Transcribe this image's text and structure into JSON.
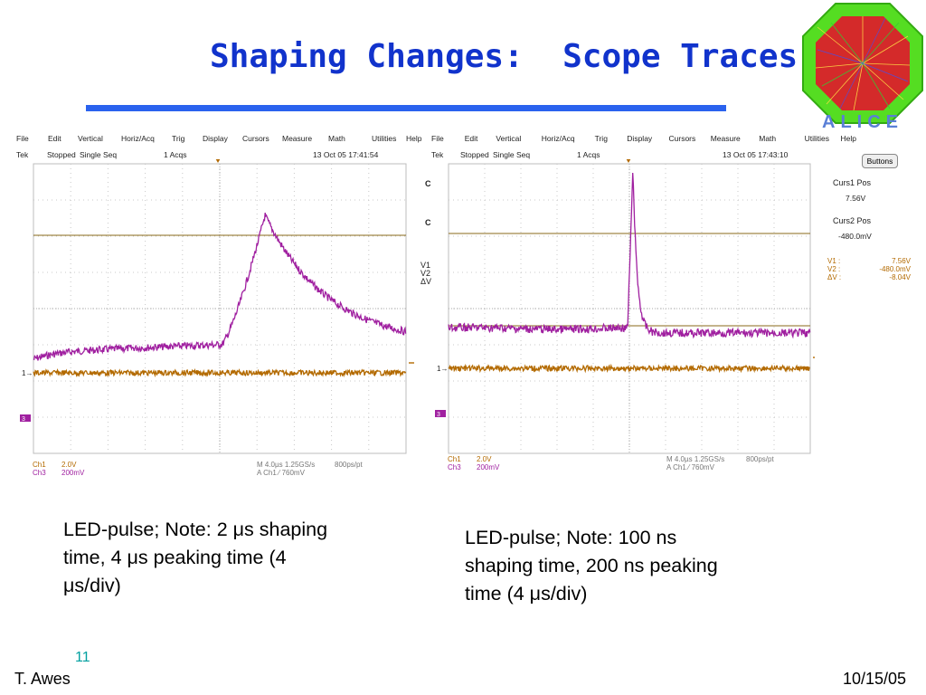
{
  "slide": {
    "title": "Shaping Changes:  Scope Traces",
    "page_number": "11",
    "author": "T. Awes",
    "date": "10/15/05",
    "logo_text": "ALICE"
  },
  "scope_left": {
    "menu": [
      "File",
      "Edit",
      "Vertical",
      "Horiz/Acq",
      "Trig",
      "Display",
      "Cursors",
      "Measure",
      "Math",
      "Utilities",
      "Help"
    ],
    "status": {
      "brand": "Tek",
      "state": "Stopped",
      "mode": "Single Seq",
      "acqs": "1 Acqs",
      "timestamp": "13 Oct 05 17:41:54"
    },
    "ch1_label": "Ch1",
    "ch1_scale": "2.0V",
    "ch3_label": "Ch3",
    "ch3_scale": "200mV",
    "timebase": "M 4.0µs 1.25GS/s",
    "resolution": "800ps/pt",
    "trigger": "A  Ch1  ⁄  760mV",
    "marker_1": "1",
    "marker_3": "3"
  },
  "scope_right": {
    "menu": [
      "File",
      "Edit",
      "Vertical",
      "Horiz/Acq",
      "Trig",
      "Display",
      "Cursors",
      "Measure",
      "Math",
      "Utilities",
      "Help"
    ],
    "status": {
      "brand": "Tek",
      "state": "Stopped",
      "mode": "Single Seq",
      "acqs": "1 Acqs",
      "timestamp": "13 Oct 05 17:43:10"
    },
    "ch1_label": "Ch1",
    "ch1_scale": "2.0V",
    "ch3_label": "Ch3",
    "ch3_scale": "200mV",
    "timebase": "M 4.0µs 1.25GS/s",
    "resolution": "800ps/pt",
    "trigger": "A  Ch1  ⁄  760mV",
    "marker_1": "1",
    "marker_3": "3",
    "cursor_c1": "C",
    "cursor_c2": "C",
    "v_labels": [
      "V1",
      "V2",
      "ΔV"
    ],
    "buttons_label": "Buttons",
    "curs1_title": "Curs1 Pos",
    "curs1_value": "7.56V",
    "curs2_title": "Curs2 Pos",
    "curs2_value": "-480.0mV",
    "readout": [
      {
        "k": "V1 :",
        "v": "7.56V"
      },
      {
        "k": "V2 :",
        "v": "-480.0mV"
      },
      {
        "k": "ΔV :",
        "v": "-8.04V"
      }
    ]
  },
  "captions": {
    "left": [
      "LED-pulse; Note: 2 μs shaping",
      "time, 4 μs peaking time (4",
      "μs/div)"
    ],
    "right": [
      "LED-pulse; Note: 100 ns",
      "shaping time, 200 ns peaking",
      "time (4 μs/div)"
    ]
  },
  "colors": {
    "title": "#1133cc",
    "rule": "#2a62ee",
    "ch1": "#b36a00",
    "ch3": "#a020a0",
    "grid": "#bdbdbd",
    "cursor": "#8a6a1a"
  }
}
